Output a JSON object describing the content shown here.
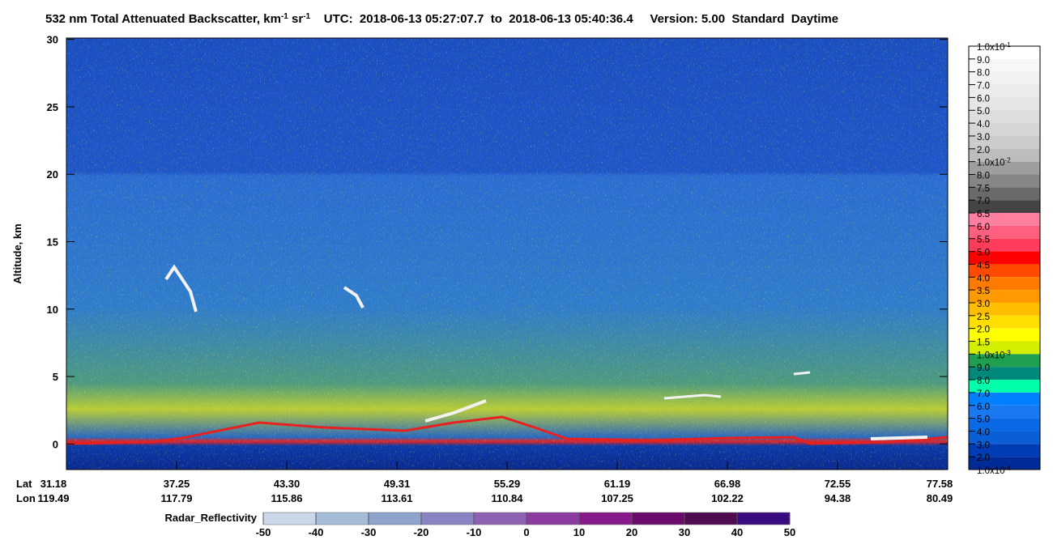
{
  "chart_data": {
    "type": "curtain",
    "title": {
      "parts": [
        {
          "text": "532 nm Total Attenuated Backscatter, km"
        },
        {
          "sup": "-1"
        },
        {
          "text": " sr"
        },
        {
          "sup": "-1"
        },
        {
          "text": "    UTC:  2018-06-13 05:27:07.7  to  2018-06-13 05:40:36.4     Version: 5.00  Standard  Daytime"
        }
      ]
    },
    "y_label": "Altitude, km",
    "ylim": [
      -1.9,
      30.1
    ],
    "yticks": [
      0,
      5,
      10,
      15,
      20,
      25,
      30
    ],
    "x_rows": [
      {
        "name": "Lat",
        "labels": [
          "31.18",
          "37.25",
          "43.30",
          "49.31",
          "55.29",
          "61.19",
          "66.98",
          "72.55",
          "77.58"
        ]
      },
      {
        "name": "Lon",
        "labels": [
          "119.49",
          "117.79",
          "115.86",
          "113.61",
          "110.84",
          "107.25",
          "102.22",
          "94.38",
          "80.49"
        ]
      }
    ],
    "colorbar": {
      "labels": [
        {
          "text": "1.0x10",
          "sup": "-1"
        },
        "9.0",
        "8.0",
        "7.0",
        "6.0",
        "5.0",
        "4.0",
        "3.0",
        "2.0",
        {
          "text": "1.0x10",
          "sup": "-2"
        },
        "8.0",
        "7.5",
        "7.0",
        "6.5",
        "6.0",
        "5.5",
        "5.0",
        "4.5",
        "4.0",
        "3.5",
        "3.0",
        "2.5",
        "2.0",
        "1.5",
        {
          "text": "1.0x10",
          "sup": "-3"
        },
        "9.0",
        "8.0",
        "7.0",
        "6.0",
        "5.0",
        "4.0",
        "3.0",
        "2.0",
        {
          "text": "1.0x10",
          "sup": "-4"
        }
      ],
      "colors": [
        "#ffffff",
        "#f8f8f8",
        "#f2f2f2",
        "#ececec",
        "#e6e6e6",
        "#dedede",
        "#d6d6d6",
        "#cccccc",
        "#bdbdbd",
        "#9e9e9e",
        "#868686",
        "#6a6a6a",
        "#444444",
        "#ff7f9f",
        "#ff6080",
        "#ff3c5a",
        "#ff0000",
        "#ff4a00",
        "#ff7a00",
        "#ff9a00",
        "#ffbf00",
        "#ffdf00",
        "#ffff00",
        "#d4ee00",
        "#1fa050",
        "#00887a",
        "#00ffaa",
        "#0080ff",
        "#1a78f0",
        "#0a6ae6",
        "#0a5fd7",
        "#003cb4",
        "#002a96"
      ]
    },
    "radar": {
      "label": "Radar_Reflectivity",
      "lim": [
        -50,
        50
      ],
      "ticks": [
        -50,
        -40,
        -30,
        -20,
        -10,
        0,
        10,
        20,
        30,
        40,
        50
      ],
      "colors": [
        "#c9d7e8",
        "#a4bcd8",
        "#8ea4cc",
        "#8a84c4",
        "#8e62b2",
        "#8c3ca0",
        "#861a8a",
        "#6a0a6a",
        "#500a50",
        "#3a0a80"
      ]
    }
  }
}
